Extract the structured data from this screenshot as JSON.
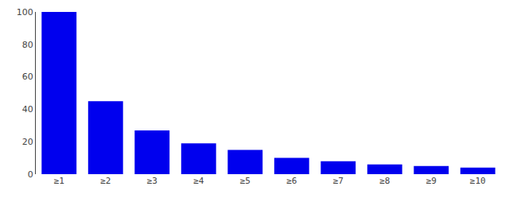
{
  "chart_data": {
    "type": "bar",
    "categories": [
      "≥1",
      "≥2",
      "≥3",
      "≥4",
      "≥5",
      "≥6",
      "≥7",
      "≥8",
      "≥9",
      "≥10"
    ],
    "values": [
      100,
      45,
      27,
      19,
      15,
      10,
      8,
      6,
      5,
      4
    ],
    "color": "#0000ee",
    "ylim": [
      0,
      100
    ],
    "yticks": [
      0,
      20,
      40,
      60,
      80,
      100
    ],
    "grid": false
  }
}
